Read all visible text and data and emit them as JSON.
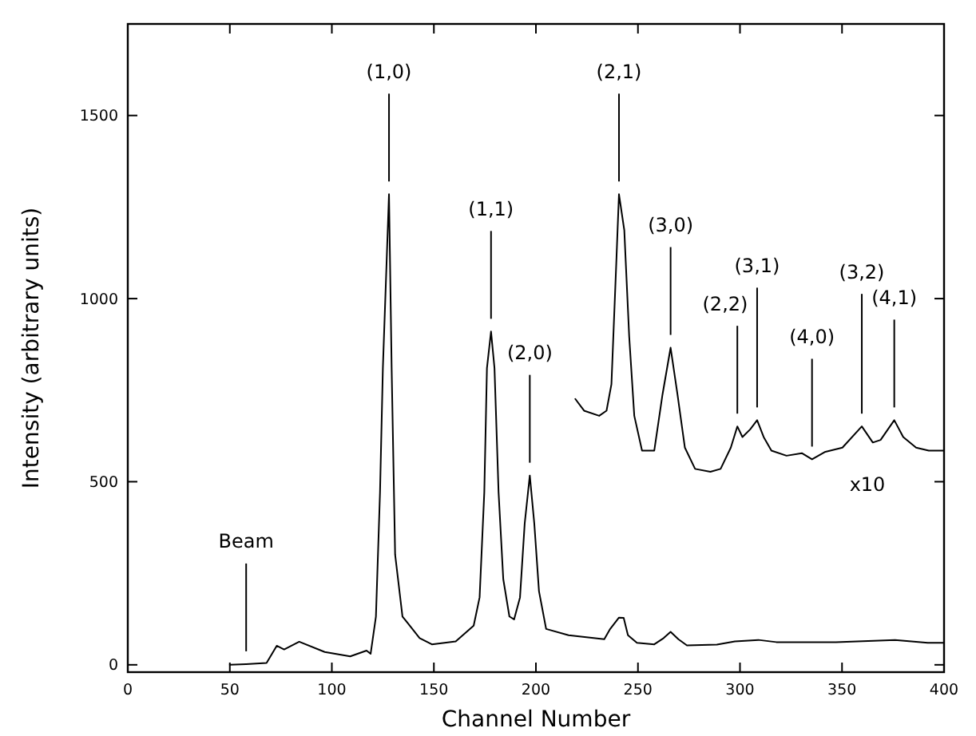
{
  "chart_data": {
    "type": "line",
    "xlabel": "Channel Number",
    "ylabel": "Intensity (arbitrary units)",
    "xlim": [
      0,
      400
    ],
    "ylim": [
      -20,
      1750
    ],
    "xticks": [
      0,
      50,
      100,
      150,
      200,
      250,
      300,
      350,
      400
    ],
    "yticks": [
      0,
      500,
      1000,
      1500
    ],
    "grid": false,
    "marker": "none",
    "line_style": "solid",
    "series": [
      {
        "color": "#000000",
        "x": [
          50,
          58,
          68,
          73,
          76.6,
          84,
          96.5,
          109,
          117,
          119,
          121.6,
          123.6,
          125,
          128,
          129.3,
          131,
          134.6,
          143,
          149,
          160.7,
          169.5,
          172.4,
          174.7,
          176,
          178,
          179.7,
          181.7,
          184,
          187,
          189.3,
          192.2,
          194.5,
          197,
          199.2,
          201.5,
          205,
          216,
          233.5,
          236.4,
          240.7,
          243,
          245.1,
          249.5,
          258,
          262.6,
          266,
          269.8,
          274,
          288.7,
          297.5,
          309,
          317.8,
          347,
          376,
          392,
          400
        ],
        "values": [
          0,
          2,
          5,
          52,
          42,
          63,
          35,
          23,
          39,
          30,
          132,
          471,
          810,
          1285,
          810,
          301,
          132,
          73,
          56,
          64,
          107,
          184,
          471,
          810,
          910,
          810,
          471,
          234,
          132,
          124,
          184,
          386,
          517,
          386,
          201,
          98,
          81,
          70,
          98,
          129,
          128,
          81,
          60,
          56,
          73,
          90,
          70,
          53,
          55,
          64,
          68,
          62,
          62,
          68,
          60,
          60
        ]
      },
      {
        "color": "#000000",
        "x": [
          219.3,
          223.6,
          231,
          234.6,
          237,
          239.5,
          240.7,
          243.3,
          245.7,
          248.2,
          252,
          258,
          262,
          266,
          269.4,
          273,
          278,
          285.5,
          290.5,
          295.5,
          298.7,
          301.2,
          305,
          308.4,
          311.6,
          315.4,
          322.8,
          330.3,
          335.3,
          341.5,
          350.2,
          359.7,
          365.1,
          368.9,
          375.6,
          380,
          386.3,
          392.5,
          400
        ],
        "values": [
          726,
          694,
          680,
          694,
          766,
          1114,
          1285,
          1187,
          897,
          680,
          585,
          585,
          737,
          866,
          737,
          593,
          535,
          527,
          535,
          593,
          651,
          622,
          643,
          668,
          622,
          585,
          571,
          578,
          561,
          581,
          593,
          651,
          607,
          614,
          668,
          622,
          593,
          585,
          585
        ]
      }
    ],
    "annotations": [
      {
        "text": "Beam",
        "x": 58,
        "y": 2
      },
      {
        "text": "(1,0)",
        "x": 128,
        "y": 1285
      },
      {
        "text": "(2,0)",
        "x": 197,
        "y": 517
      },
      {
        "text": "(1,1)",
        "x": 178,
        "y": 910
      },
      {
        "text": "(2,1)",
        "x": 240.7,
        "y": 1285
      },
      {
        "text": "(3,0)",
        "x": 266,
        "y": 866
      },
      {
        "text": "(2,2)",
        "x": 298.7,
        "y": 651
      },
      {
        "text": "(3,1)",
        "x": 308.4,
        "y": 668
      },
      {
        "text": "(4,0)",
        "x": 335.3,
        "y": 561
      },
      {
        "text": "(4,1)",
        "x": 375.6,
        "y": 668
      },
      {
        "text": "(3,2)",
        "x": 359.7,
        "y": 651
      },
      "x10"
    ]
  }
}
